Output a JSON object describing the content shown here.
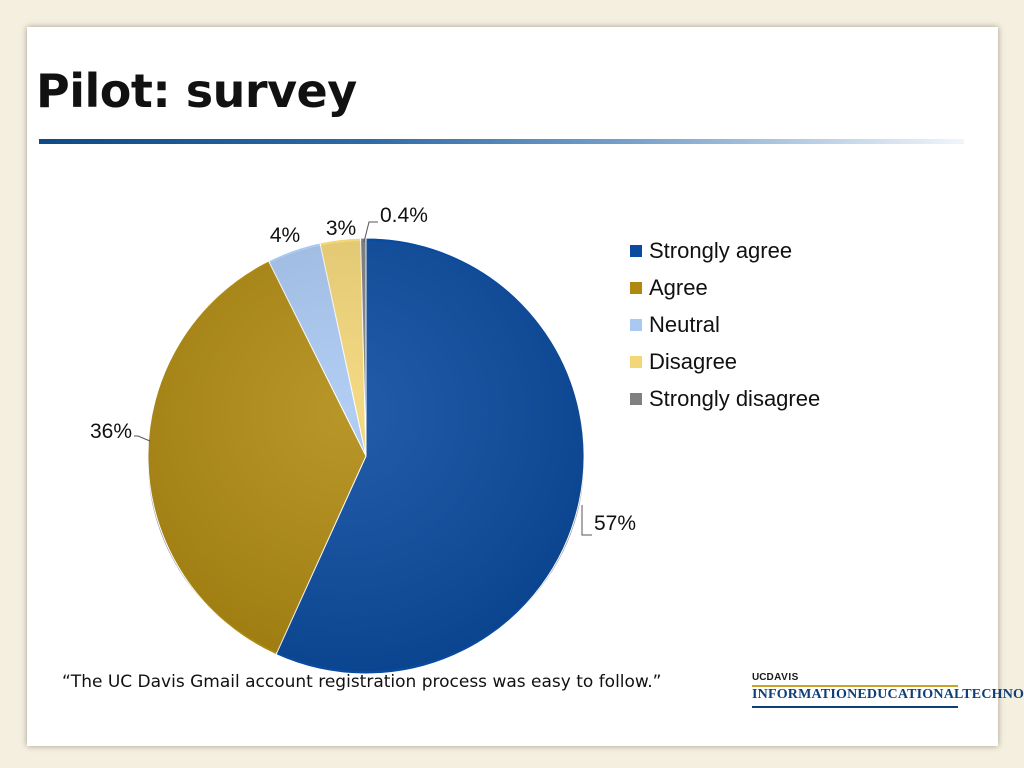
{
  "slide": {
    "title": "Pilot: survey",
    "caption": "“The UC Davis Gmail account registration process was easy to follow.”"
  },
  "logo": {
    "top_uc": "UC",
    "top_davis": "DAVIS",
    "main": "INFORMATIONEDUCATIONALTECHNOLOGY"
  },
  "chart_data": {
    "type": "pie",
    "title": "",
    "categories": [
      "Strongly agree",
      "Agree",
      "Neutral",
      "Disagree",
      "Strongly disagree"
    ],
    "values": [
      57,
      36,
      4,
      3,
      0.4
    ],
    "labels": [
      "57%",
      "36%",
      "4%",
      "3%",
      "0.4%"
    ],
    "colors": [
      "#0a4ba0",
      "#b08a10",
      "#a9c8f2",
      "#f3d676",
      "#808080"
    ],
    "legend_position": "right",
    "start_angle_deg": 0,
    "direction": "clockwise"
  }
}
